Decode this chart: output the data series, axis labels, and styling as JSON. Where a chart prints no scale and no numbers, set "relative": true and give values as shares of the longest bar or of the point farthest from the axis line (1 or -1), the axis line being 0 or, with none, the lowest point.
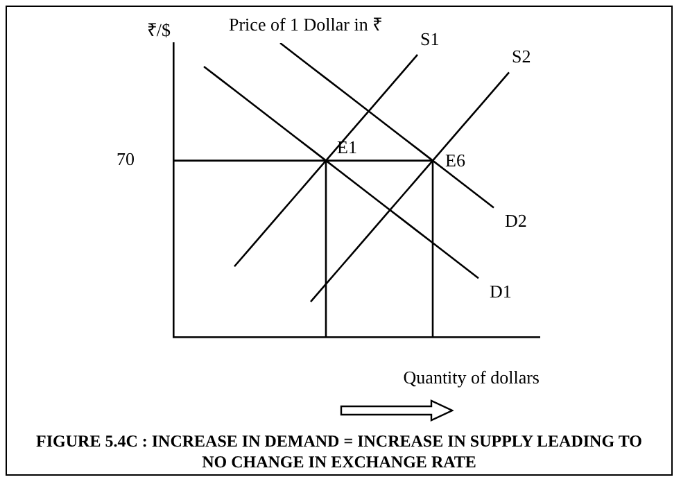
{
  "chart_data": {
    "type": "line",
    "relative": true,
    "title": "FIGURE 5.4C : INCREASE IN DEMAND = INCREASE IN SUPPLY LEADING TO NO CHANGE IN EXCHANGE RATE",
    "ylabel": "₹/$",
    "xlabel": "Quantity of dollars",
    "legend": false,
    "grid": false,
    "marker": "none",
    "line_style": "solid",
    "categories": [
      null,
      null,
      null,
      null,
      null,
      null,
      null,
      null,
      null,
      null,
      null,
      null,
      null,
      null,
      null,
      null,
      null,
      null,
      null,
      null,
      null,
      null,
      null,
      null,
      null
    ],
    "series": [
      {
        "name": "S1",
        "color": "#000000",
        "values": [
          null,
          null,
          null,
          null,
          0.24,
          0.3,
          0.36,
          0.42,
          0.48,
          0.54,
          0.6,
          0.66,
          0.72,
          0.78,
          0.84,
          0.9,
          0.96,
          null,
          null,
          null,
          null,
          null,
          null,
          null,
          null
        ]
      },
      {
        "name": "S2",
        "color": "#000000",
        "values": [
          null,
          null,
          null,
          null,
          null,
          null,
          null,
          null,
          null,
          0.12,
          0.18,
          0.24,
          0.3,
          0.36,
          0.42,
          0.48,
          0.54,
          0.6,
          0.66,
          0.72,
          0.78,
          0.84,
          0.9,
          null,
          null
        ]
      },
      {
        "name": "D1",
        "color": "#000000",
        "values": [
          null,
          null,
          0.92,
          0.88,
          0.84,
          0.8,
          0.76,
          0.72,
          0.68,
          0.64,
          0.6,
          0.56,
          0.52,
          0.48,
          0.44,
          0.4,
          0.36,
          0.32,
          0.28,
          0.24,
          0.2,
          null,
          null,
          null,
          null
        ]
      },
      {
        "name": "D2",
        "color": "#000000",
        "values": [
          null,
          null,
          null,
          null,
          null,
          null,
          null,
          1,
          0.96,
          0.92,
          0.88,
          0.84,
          0.8,
          0.76,
          0.72,
          0.68,
          0.64,
          0.6,
          0.56,
          0.52,
          0.48,
          0.44,
          null,
          null,
          null
        ]
      },
      {
        "color": "#000000",
        "values": [
          0.6,
          0.6,
          0.6,
          0.6,
          0.6,
          0.6,
          0.6,
          0.6,
          0.6,
          0.6,
          0.6,
          0.6,
          0.6,
          0.6,
          0.6,
          0.6,
          0.6,
          0.6,
          null,
          null,
          null,
          null,
          null,
          null,
          null
        ]
      }
    ],
    "annotations": [
      "Price of 1 Dollar in ₹",
      "70",
      "E1",
      "E6"
    ]
  }
}
